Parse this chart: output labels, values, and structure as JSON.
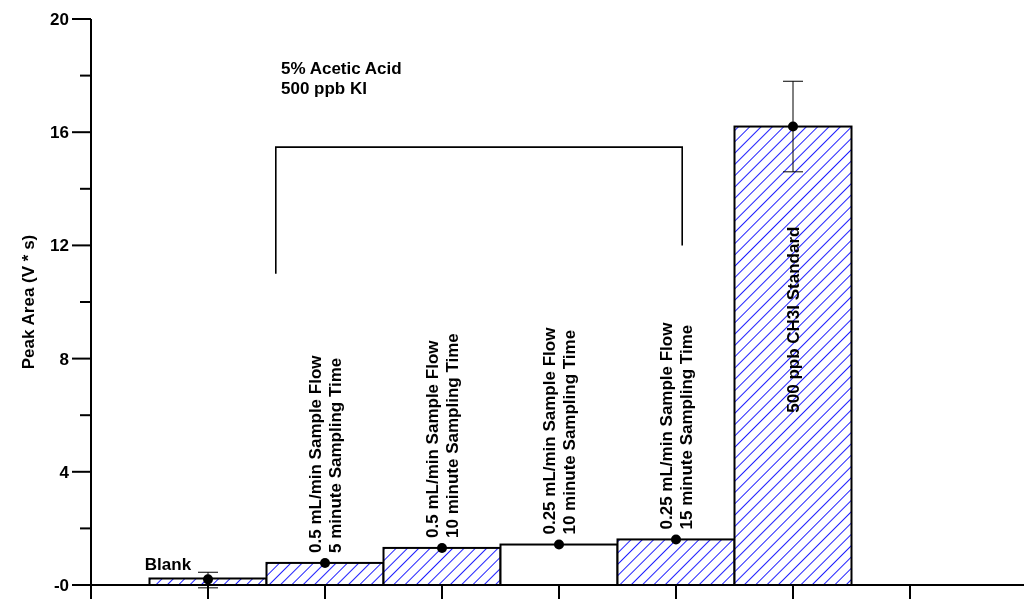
{
  "chart_data": {
    "type": "bar",
    "ylabel": "Peak Area (V * s)",
    "categories": [
      "Blank",
      "0.5 mL/min Sample Flow\n5 minute Sampling Time",
      "0.5 mL/min Sample Flow\n10 minute Sampling Time",
      "0.25 mL/min Sample Flow\n10 minute Sampling Time",
      "0.25 mL/min Sample Flow\n15 minute Sampling Time",
      "500 ppb CH3I Standard",
      null
    ],
    "series": [
      {
        "values": [
          0.23,
          0.78,
          1.31,
          1.43,
          1.61,
          16.2,
          null
        ],
        "colors": [
          "#2020ff",
          "#2020ff",
          "#2020ff",
          "#ffffff",
          "#2020ff",
          "#2020ff",
          null
        ]
      },
      {
        "type": "scatter",
        "color": "#000000",
        "values": [
          0.2,
          0.78,
          1.31,
          1.43,
          1.61,
          16.2,
          null
        ],
        "errors": [
          [
            -0.1,
            0.45
          ],
          null,
          null,
          null,
          null,
          [
            14.6,
            17.8
          ],
          null
        ]
      }
    ],
    "ylim": [
      0,
      20
    ],
    "yticks": [
      {
        "value": 0,
        "label": "-0"
      },
      {
        "value": 2,
        "label": null
      },
      4,
      {
        "value": 6,
        "label": null
      },
      8,
      {
        "value": 10,
        "label": null
      },
      12,
      {
        "value": 14,
        "label": null
      },
      16,
      {
        "value": 18,
        "label": null
      },
      20
    ],
    "marker": "circle",
    "grid": false,
    "annotations": [
      "5% Acetic Acid\n500 ppb KI"
    ]
  }
}
